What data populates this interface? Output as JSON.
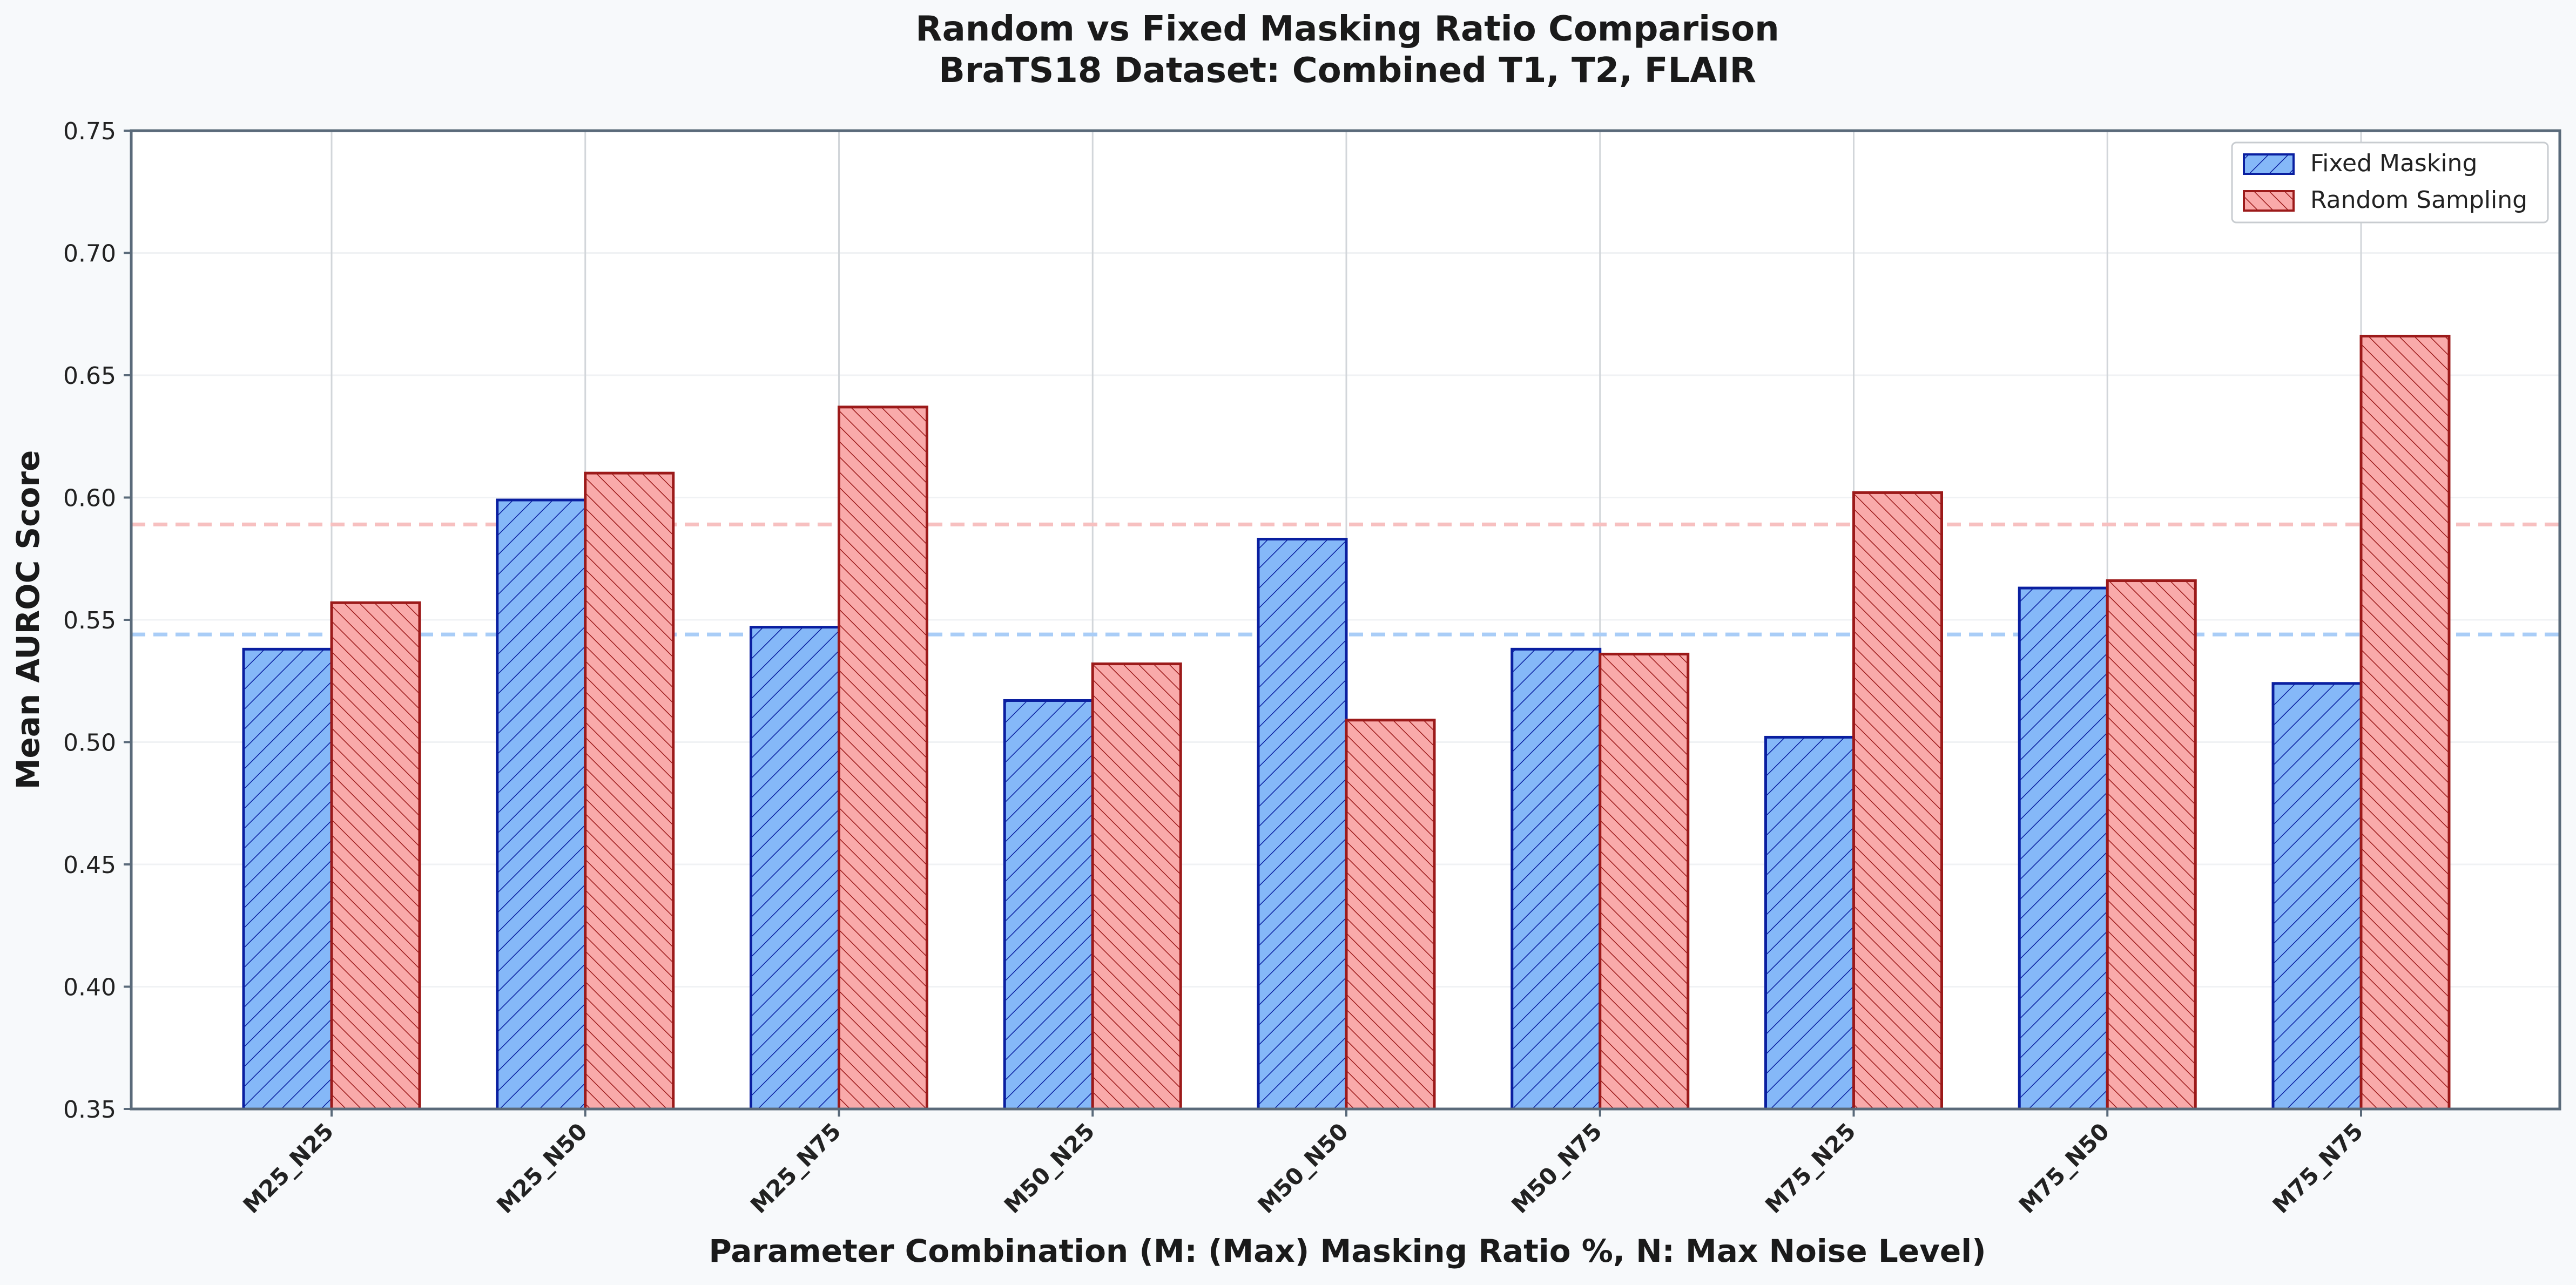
{
  "chart_data": {
    "type": "bar",
    "title": "Random vs Fixed Masking Ratio Comparison",
    "subtitle": "BraTS18 Dataset: Combined T1, T2, FLAIR",
    "xlabel": "Parameter Combination (M: (Max) Masking Ratio %, N: Max Noise Level)",
    "ylabel": "Mean AUROC Score",
    "ylim": [
      0.35,
      0.75
    ],
    "yticks": [
      "0.35",
      "0.40",
      "0.45",
      "0.50",
      "0.55",
      "0.60",
      "0.65",
      "0.70",
      "0.75"
    ],
    "categories": [
      "M25_N25",
      "M25_N50",
      "M25_N75",
      "M50_N25",
      "M50_N50",
      "M50_N75",
      "M75_N25",
      "M75_N50",
      "M75_N75"
    ],
    "series": [
      {
        "name": "Fixed Masking",
        "color": "#85b8f8",
        "edge_color": "#0a1fa0",
        "hatch": "forward-diagonal",
        "values": [
          0.538,
          0.599,
          0.547,
          0.517,
          0.583,
          0.538,
          0.502,
          0.563,
          0.524
        ]
      },
      {
        "name": "Random Sampling",
        "color": "#f9aaaa",
        "edge_color": "#9c1a1a",
        "hatch": "back-diagonal",
        "values": [
          0.557,
          0.61,
          0.637,
          0.532,
          0.509,
          0.536,
          0.602,
          0.566,
          0.666
        ]
      }
    ],
    "reference_lines": [
      {
        "series": "Fixed Masking",
        "value": 0.544,
        "color": "#a9cdf7",
        "style": "dashed"
      },
      {
        "series": "Random Sampling",
        "value": 0.589,
        "color": "#f7c0c0",
        "style": "dashed"
      }
    ],
    "grid": true,
    "legend_position": "top-right"
  }
}
